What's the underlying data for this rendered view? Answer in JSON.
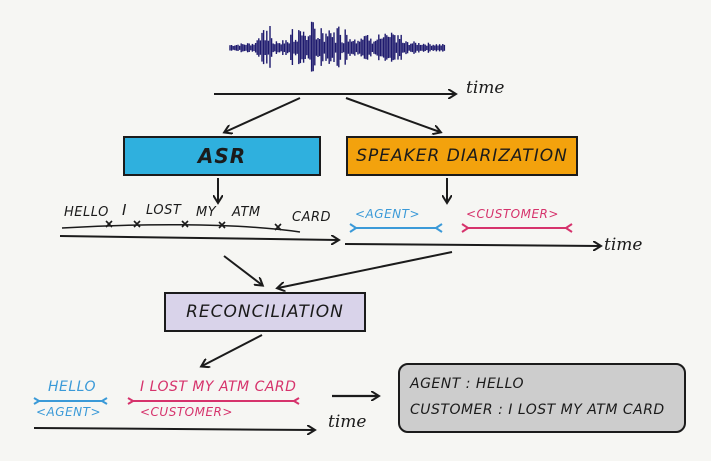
{
  "waveform": {
    "icon": "audio-waveform-icon",
    "color": "#1e1a6e"
  },
  "time_label": "time",
  "asr": {
    "label": "ASR",
    "color": "#2fb0de"
  },
  "diarization": {
    "label": "SPEAKER DIARIZATION",
    "color": "#f3a20d"
  },
  "reconciliation": {
    "label": "RECONCILIATION",
    "color": "#d9d3ea"
  },
  "asr_words": [
    "HELLO",
    "I",
    "LOST",
    "MY",
    "ATM",
    "CARD"
  ],
  "diarization_labels": {
    "agent": "<AGENT>",
    "customer": "<CUSTOMER>"
  },
  "reconciled": {
    "agent_text": "HELLO",
    "agent_label": "<AGENT>",
    "customer_text": "I LOST MY ATM CARD",
    "customer_label": "<CUSTOMER>"
  },
  "output": {
    "line1_speaker": "AGENT",
    "line1_text": "HELLO",
    "line2_speaker": "CUSTOMER",
    "line2_text": "I LOST MY ATM CARD"
  },
  "colors": {
    "agent": "#3b9ad8",
    "customer": "#d6336c",
    "output_bg": "#cdcdcd"
  }
}
